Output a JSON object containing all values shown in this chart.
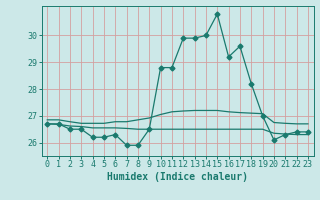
{
  "title": "",
  "xlabel": "Humidex (Indice chaleur)",
  "ylabel": "",
  "bg_color": "#cce8e8",
  "line_color": "#1a7a6e",
  "grid_color": "#d4a0a0",
  "xlim": [
    -0.5,
    23.5
  ],
  "ylim": [
    25.5,
    31.1
  ],
  "yticks": [
    26,
    27,
    28,
    29,
    30
  ],
  "xticks": [
    0,
    1,
    2,
    3,
    4,
    5,
    6,
    7,
    8,
    9,
    10,
    11,
    12,
    13,
    14,
    15,
    16,
    17,
    18,
    19,
    20,
    21,
    22,
    23
  ],
  "main_line": [
    26.7,
    26.7,
    26.5,
    26.5,
    26.2,
    26.2,
    26.3,
    25.9,
    25.9,
    26.5,
    28.8,
    28.8,
    29.9,
    29.9,
    30.0,
    30.8,
    29.2,
    29.6,
    28.2,
    27.0,
    26.1,
    26.3,
    26.4,
    26.4
  ],
  "upper_line": [
    26.85,
    26.85,
    26.78,
    26.72,
    26.72,
    26.72,
    26.78,
    26.78,
    26.85,
    26.92,
    27.05,
    27.15,
    27.18,
    27.2,
    27.2,
    27.2,
    27.15,
    27.12,
    27.1,
    27.08,
    26.75,
    26.72,
    26.7,
    26.7
  ],
  "lower_line": [
    26.7,
    26.68,
    26.62,
    26.6,
    26.55,
    26.55,
    26.55,
    26.53,
    26.5,
    26.5,
    26.5,
    26.5,
    26.5,
    26.5,
    26.5,
    26.5,
    26.5,
    26.5,
    26.5,
    26.5,
    26.35,
    26.32,
    26.3,
    26.3
  ],
  "marker_size": 2.5,
  "line_width": 0.9,
  "tick_fontsize": 6,
  "xlabel_fontsize": 7
}
